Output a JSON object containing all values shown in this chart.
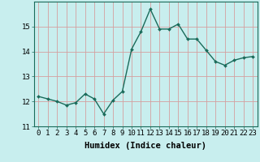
{
  "x": [
    0,
    1,
    2,
    3,
    4,
    5,
    6,
    7,
    8,
    9,
    10,
    11,
    12,
    13,
    14,
    15,
    16,
    17,
    18,
    19,
    20,
    21,
    22,
    23
  ],
  "y": [
    12.2,
    12.1,
    12.0,
    11.85,
    11.95,
    12.3,
    12.1,
    11.5,
    12.05,
    12.4,
    14.1,
    14.8,
    15.7,
    14.9,
    14.9,
    15.1,
    14.5,
    14.5,
    14.05,
    13.6,
    13.45,
    13.65,
    13.75,
    13.8
  ],
  "line_color": "#1a6b5a",
  "marker": "D",
  "marker_size": 2.0,
  "line_width": 1.0,
  "bg_color": "#c8eeee",
  "grid_color": "#d4a0a0",
  "xlabel": "Humidex (Indice chaleur)",
  "ylim": [
    11,
    16
  ],
  "xlim": [
    -0.5,
    23.5
  ],
  "yticks": [
    11,
    12,
    13,
    14,
    15
  ],
  "xticks": [
    0,
    1,
    2,
    3,
    4,
    5,
    6,
    7,
    8,
    9,
    10,
    11,
    12,
    13,
    14,
    15,
    16,
    17,
    18,
    19,
    20,
    21,
    22,
    23
  ],
  "xtick_labels": [
    "0",
    "1",
    "2",
    "3",
    "4",
    "5",
    "6",
    "7",
    "8",
    "9",
    "10",
    "11",
    "12",
    "13",
    "14",
    "15",
    "16",
    "17",
    "18",
    "19",
    "20",
    "21",
    "22",
    "23"
  ],
  "xlabel_fontsize": 7.5,
  "tick_fontsize": 6.5,
  "ylabel_fontsize": 6.5
}
